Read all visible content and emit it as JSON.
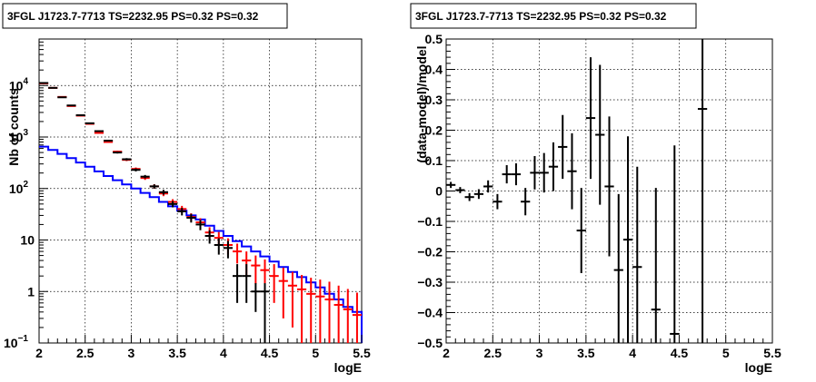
{
  "chart_data": [
    {
      "type": "histogram",
      "title": "3FGL J1723.7-7713 TS=2232.95 PS=0.32 PS=0.32",
      "xlabel": "logE",
      "ylabel": "Nb of counts",
      "xlim": [
        2,
        5.5
      ],
      "ylim": [
        0.1,
        80000
      ],
      "yscale": "log",
      "grid": true,
      "x_ticks": [
        "2",
        "2.5",
        "3",
        "3.5",
        "4",
        "4.5",
        "5",
        "5.5"
      ],
      "y_ticks": [
        {
          "value": 0.1,
          "label": "10",
          "exp": "−1"
        },
        {
          "value": 1,
          "label": "1",
          "exp": ""
        },
        {
          "value": 10,
          "label": "10",
          "exp": ""
        },
        {
          "value": 100,
          "label": "10",
          "exp": "2"
        },
        {
          "value": 1000,
          "label": "10",
          "exp": "3"
        },
        {
          "value": 10000,
          "label": "10",
          "exp": "4"
        }
      ],
      "bin_edges": [
        2.0,
        2.1,
        2.2,
        2.3,
        2.4,
        2.5,
        2.6,
        2.7,
        2.8,
        2.9,
        3.0,
        3.1,
        3.2,
        3.3,
        3.4,
        3.5,
        3.6,
        3.7,
        3.8,
        3.9,
        4.0,
        4.1,
        4.2,
        4.3,
        4.4,
        4.5,
        4.6,
        4.7,
        4.8,
        4.9,
        5.0,
        5.1,
        5.2,
        5.3,
        5.4,
        5.5
      ],
      "series": [
        {
          "style": "steps",
          "color": "#0000ff",
          "values": [
            650,
            560,
            470,
            390,
            320,
            265,
            215,
            175,
            145,
            120,
            100,
            82,
            68,
            55,
            45,
            37,
            30,
            25,
            19,
            15,
            12,
            9.5,
            7.5,
            6,
            4.8,
            3.8,
            3.0,
            2.4,
            1.9,
            1.5,
            1.2,
            0.9,
            0.7,
            0.5,
            0.4
          ]
        },
        {
          "style": "errorbars",
          "color": "#ff0000",
          "values": [
            11000,
            9000,
            6000,
            4000,
            2600,
            1800,
            1200,
            800,
            520,
            360,
            240,
            160,
            110,
            80,
            55,
            40,
            28,
            22,
            14,
            11,
            8,
            6,
            4,
            3.2,
            2.6,
            2.0,
            1.6,
            1.3,
            1.1,
            0.9,
            0.8,
            0.7,
            0.55,
            0.45,
            0.35
          ],
          "errors": [
            100,
            95,
            78,
            63,
            51,
            42,
            35,
            28,
            23,
            19,
            16,
            13,
            11,
            9,
            7,
            6,
            5,
            4.5,
            3.7,
            3.3,
            2.8,
            2.5,
            2.0,
            1.8,
            1.6,
            1.4,
            1.3,
            1.1,
            1.0,
            0.95,
            0.9,
            0.85,
            0.75,
            0.67,
            0.6
          ]
        },
        {
          "style": "errorbars",
          "color": "#000000",
          "values": [
            11200,
            9000,
            5900,
            4100,
            2650,
            1850,
            1300,
            850,
            500,
            370,
            230,
            170,
            110,
            85,
            50,
            36,
            27,
            20,
            12,
            8,
            7,
            2,
            2,
            1,
            1
          ],
          "errors": [
            105,
            95,
            77,
            64,
            51,
            43,
            36,
            29,
            22,
            19,
            15,
            13,
            10.5,
            9.2,
            7,
            6,
            5.2,
            4.5,
            3.5,
            2.8,
            2.6,
            1.4,
            1.4,
            0.45,
            0.45
          ],
          "lower_errors": [
            105,
            95,
            77,
            64,
            51,
            43,
            36,
            29,
            22,
            19,
            15,
            13,
            10.5,
            9.2,
            7,
            6,
            5.2,
            4.5,
            3.5,
            2.8,
            2.6,
            1.4,
            1.4,
            0.6,
            0.95
          ]
        }
      ]
    },
    {
      "type": "scatter",
      "title": "3FGL J1723.7-7713 TS=2232.95 PS=0.32 PS=0.32",
      "xlabel": "logE",
      "ylabel": "(data-model)/model",
      "xlim": [
        2,
        5.5
      ],
      "ylim": [
        -0.5,
        0.5
      ],
      "grid": true,
      "x_ticks": [
        "2",
        "2.5",
        "3",
        "3.5",
        "4",
        "4.5",
        "5",
        "5.5"
      ],
      "y_ticks": [
        "−0.5",
        "−0.4",
        "−0.3",
        "−0.2",
        "−0.1",
        "0",
        "0.1",
        "0.2",
        "0.3",
        "0.4",
        "0.5"
      ],
      "points": [
        {
          "x": 2.05,
          "y": 0.02,
          "err": 0.01
        },
        {
          "x": 2.15,
          "y": 0.003,
          "err": 0.01
        },
        {
          "x": 2.25,
          "y": -0.02,
          "err": 0.013
        },
        {
          "x": 2.35,
          "y": -0.01,
          "err": 0.016
        },
        {
          "x": 2.45,
          "y": 0.015,
          "err": 0.02
        },
        {
          "x": 2.55,
          "y": -0.035,
          "err": 0.025
        },
        {
          "x": 2.65,
          "y": 0.055,
          "err": 0.03
        },
        {
          "x": 2.75,
          "y": 0.055,
          "err": 0.036
        },
        {
          "x": 2.85,
          "y": -0.035,
          "err": 0.045
        },
        {
          "x": 2.95,
          "y": 0.06,
          "err": 0.055
        },
        {
          "x": 3.05,
          "y": 0.06,
          "err": 0.065
        },
        {
          "x": 3.15,
          "y": 0.08,
          "err": 0.08
        },
        {
          "x": 3.25,
          "y": 0.145,
          "err": 0.105
        },
        {
          "x": 3.35,
          "y": 0.065,
          "err": 0.125
        },
        {
          "x": 3.45,
          "y": -0.13,
          "err": 0.14
        },
        {
          "x": 3.55,
          "y": 0.24,
          "err": 0.2
        },
        {
          "x": 3.65,
          "y": 0.185,
          "err": 0.23
        },
        {
          "x": 3.75,
          "y": 0.015,
          "err": 0.23
        },
        {
          "x": 3.85,
          "y": -0.26,
          "err": 0.25
        },
        {
          "x": 3.95,
          "y": -0.16,
          "err": 0.34
        },
        {
          "x": 4.05,
          "y": -0.25,
          "err": 0.33
        },
        {
          "x": 4.25,
          "y": -0.39,
          "err": 0.4
        },
        {
          "x": 4.45,
          "y": -0.47,
          "err": 0.62
        },
        {
          "x": 4.75,
          "y": 0.27,
          "err": 1.0
        }
      ]
    }
  ]
}
